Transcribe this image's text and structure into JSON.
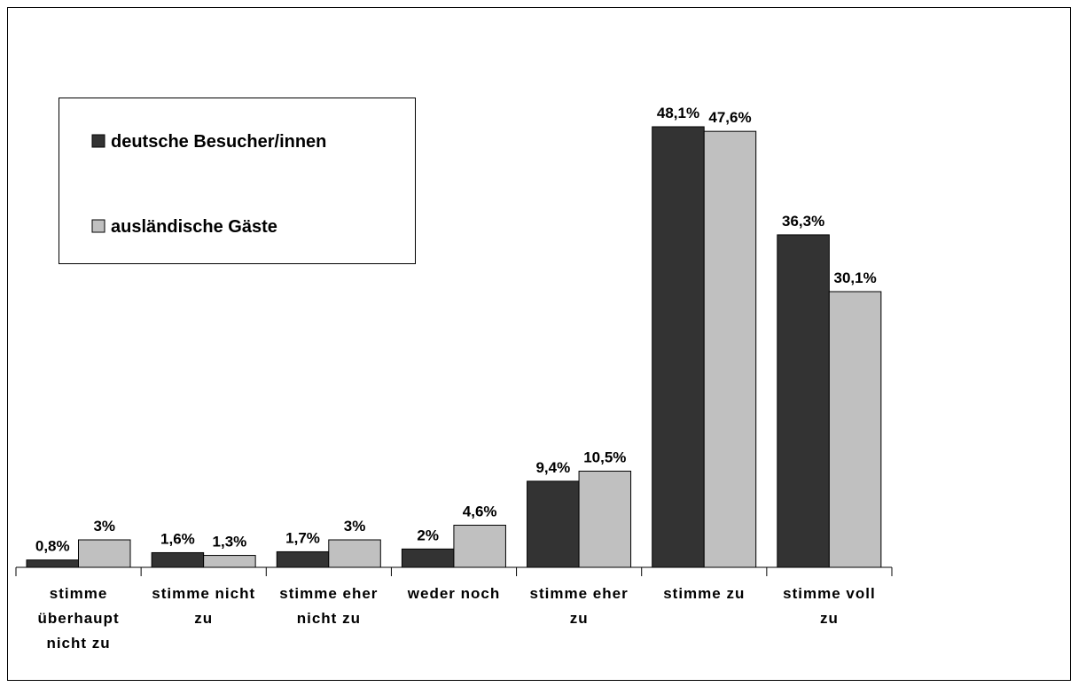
{
  "chart_data": {
    "type": "bar",
    "categories": [
      "stimme überhaupt nicht zu",
      "stimme nicht zu",
      "stimme eher nicht zu",
      "weder noch",
      "stimme eher zu",
      "stimme zu",
      "stimme voll zu"
    ],
    "series": [
      {
        "name": "deutsche Besucher/innen",
        "color": "#333333",
        "values": [
          0.8,
          1.6,
          1.7,
          2,
          9.4,
          48.1,
          36.3
        ],
        "value_labels": [
          "0,8%",
          "1,6%",
          "1,7%",
          "2%",
          "9,4%",
          "48,1%",
          "36,3%"
        ]
      },
      {
        "name": "ausländische Gäste",
        "color": "#c0c0c0",
        "values": [
          3,
          1.3,
          3,
          4.6,
          10.5,
          47.6,
          30.1
        ],
        "value_labels": [
          "3%",
          "1,3%",
          "3%",
          "4,6%",
          "10,5%",
          "47,6%",
          "30,1%"
        ]
      }
    ]
  }
}
